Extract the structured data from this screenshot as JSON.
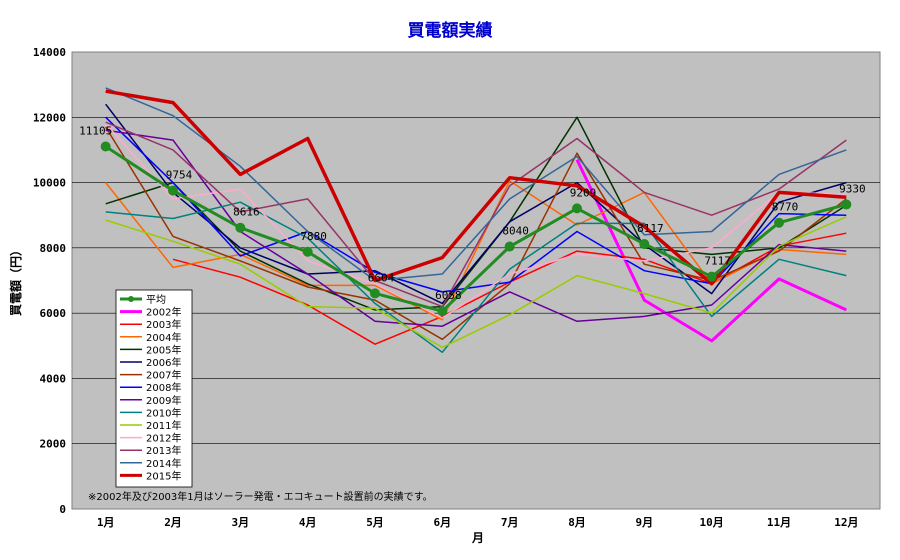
{
  "chart_data": {
    "type": "line",
    "title": "買電額実績",
    "xlabel": "月",
    "ylabel": "買電額（円）",
    "ylim": [
      0,
      14000
    ],
    "yticks": [
      "0",
      "2000",
      "4000",
      "6000",
      "8000",
      "10000",
      "12000",
      "14000"
    ],
    "categories": [
      "1月",
      "2月",
      "3月",
      "4月",
      "5月",
      "6月",
      "7月",
      "8月",
      "9月",
      "10月",
      "11月",
      "12月"
    ],
    "grid": true,
    "legend_position": "left",
    "note": "※2002年及び2003年1月はソーラー発電・エコキュート設置前の実績です。",
    "average_labels": [
      "11105",
      "9754",
      "8616",
      "7880",
      "6604",
      "6058",
      "8040",
      "9209",
      "8117",
      "7117",
      "8770",
      "9330"
    ],
    "series": [
      {
        "name": "平均",
        "color": "#228b22",
        "width": 3,
        "markers": true,
        "values": [
          11105,
          9754,
          8616,
          7880,
          6604,
          6058,
          8040,
          9209,
          8117,
          7117,
          8770,
          9330
        ]
      },
      {
        "name": "2002年",
        "color": "#ff00ff",
        "width": 3,
        "values": [
          null,
          null,
          null,
          null,
          null,
          null,
          null,
          10700,
          6400,
          5150,
          7050,
          6100
        ]
      },
      {
        "name": "2003年",
        "color": "#ff0000",
        "width": 1.5,
        "values": [
          null,
          7650,
          7100,
          6250,
          5050,
          5900,
          6950,
          7900,
          7650,
          6900,
          8050,
          8450
        ]
      },
      {
        "name": "2004年",
        "color": "#ff6600",
        "width": 1.5,
        "values": [
          10000,
          7400,
          7800,
          6850,
          6850,
          5800,
          10050,
          8700,
          9700,
          6900,
          7950,
          7800
        ]
      },
      {
        "name": "2005年",
        "color": "#003300",
        "width": 1.5,
        "values": [
          9350,
          10000,
          7900,
          6900,
          6100,
          6200,
          8800,
          12000,
          8000,
          7800,
          8000,
          9300
        ]
      },
      {
        "name": "2006年",
        "color": "#000066",
        "width": 1.5,
        "values": [
          12400,
          9700,
          8000,
          7200,
          7300,
          6300,
          8800,
          10000,
          8100,
          6600,
          9400,
          10000
        ]
      },
      {
        "name": "2007年",
        "color": "#993300",
        "width": 1.5,
        "values": [
          11700,
          8350,
          7600,
          6800,
          6400,
          5200,
          6900,
          10900,
          7500,
          7000,
          7900,
          9500
        ]
      },
      {
        "name": "2008年",
        "color": "#0000ff",
        "width": 1.5,
        "values": [
          12000,
          10000,
          7750,
          8500,
          7250,
          6650,
          6950,
          8500,
          7300,
          6900,
          9050,
          9000
        ]
      },
      {
        "name": "2009年",
        "color": "#660099",
        "width": 1.5,
        "values": [
          11600,
          11300,
          8500,
          7200,
          5750,
          5600,
          6650,
          5750,
          5900,
          6250,
          8100,
          7900
        ]
      },
      {
        "name": "2010年",
        "color": "#008080",
        "width": 1.5,
        "values": [
          9100,
          8900,
          9400,
          8300,
          6300,
          4800,
          7350,
          8750,
          8750,
          5900,
          7650,
          7150
        ]
      },
      {
        "name": "2011年",
        "color": "#99cc00",
        "width": 1.5,
        "values": [
          8850,
          8200,
          7500,
          6200,
          6150,
          4950,
          5950,
          7150,
          6600,
          6000,
          8050,
          8950
        ]
      },
      {
        "name": "2012年",
        "color": "#ffaacc",
        "width": 1.5,
        "values": [
          11800,
          9500,
          9800,
          7600,
          6900,
          5850,
          7200,
          7800,
          7600,
          8000,
          9700,
          9650
        ]
      },
      {
        "name": "2013年",
        "color": "#993366",
        "width": 1.5,
        "values": [
          11850,
          11000,
          9100,
          9500,
          7000,
          6200,
          9900,
          11350,
          9700,
          9000,
          9800,
          11300
        ]
      },
      {
        "name": "2014年",
        "color": "#336699",
        "width": 1.5,
        "values": [
          12900,
          12050,
          10500,
          8500,
          7000,
          7200,
          9500,
          10800,
          8400,
          8500,
          10250,
          11000
        ]
      },
      {
        "name": "2015年",
        "color": "#cc0000",
        "width": 3.5,
        "values": [
          12800,
          12450,
          10250,
          11350,
          7000,
          7700,
          10150,
          9900,
          8650,
          6900,
          9700,
          9550
        ]
      }
    ]
  }
}
